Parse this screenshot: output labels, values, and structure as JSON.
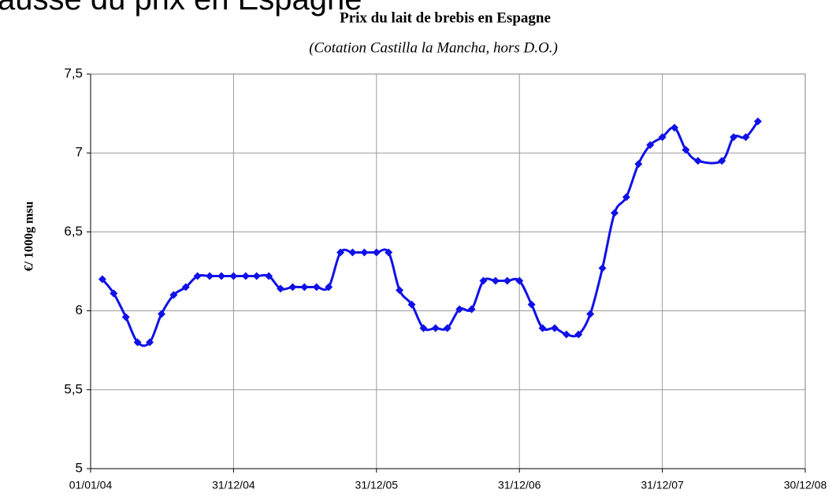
{
  "slide_title": "ausse du prix en Espagne",
  "chart_data": {
    "type": "line",
    "title": "Prix du lait de brebis en Espagne",
    "subtitle": "(Cotation Castilla la Mancha, hors D.O.)",
    "y_label": "€/ 1000g msu",
    "x": [
      "31/01/04",
      "29/02/04",
      "31/03/04",
      "30/04/04",
      "31/05/04",
      "30/06/04",
      "31/07/04",
      "31/08/04",
      "30/09/04",
      "31/10/04",
      "30/11/04",
      "31/12/04",
      "31/01/05",
      "28/02/05",
      "31/03/05",
      "30/04/05",
      "31/05/05",
      "30/06/05",
      "31/07/05",
      "31/08/05",
      "30/09/05",
      "31/10/05",
      "30/11/05",
      "31/12/05",
      "31/01/06",
      "28/02/06",
      "31/03/06",
      "30/04/06",
      "31/05/06",
      "30/06/06",
      "31/07/06",
      "31/08/06",
      "30/09/06",
      "31/10/06",
      "30/11/06",
      "31/12/06",
      "31/01/07",
      "28/02/07",
      "31/03/07",
      "30/04/07",
      "31/05/07",
      "30/06/07",
      "31/07/07",
      "31/08/07",
      "30/09/07",
      "31/10/07",
      "30/11/07",
      "31/12/07",
      "31/01/08",
      "29/02/08",
      "31/03/08",
      "31/05/08",
      "30/06/08",
      "31/07/08",
      "31/08/08"
    ],
    "series": [
      {
        "name": "Prix",
        "color": "#1010e8",
        "values": [
          6.2,
          6.11,
          5.96,
          5.8,
          5.8,
          5.98,
          6.1,
          6.15,
          6.22,
          6.22,
          6.22,
          6.22,
          6.22,
          6.22,
          6.22,
          6.14,
          6.15,
          6.15,
          6.15,
          6.15,
          6.37,
          6.37,
          6.37,
          6.37,
          6.37,
          6.13,
          6.04,
          5.89,
          5.89,
          5.89,
          6.01,
          6.01,
          6.19,
          6.19,
          6.19,
          6.19,
          6.04,
          5.89,
          5.89,
          5.85,
          5.85,
          5.98,
          6.27,
          6.62,
          6.72,
          6.93,
          7.05,
          7.1,
          7.16,
          7.02,
          6.95,
          6.95,
          7.1,
          7.1,
          7.2
        ]
      }
    ],
    "xlim": [
      "01/01/04",
      "30/12/08"
    ],
    "xticks": [
      "01/01/04",
      "31/12/04",
      "31/12/05",
      "31/12/06",
      "31/12/07",
      "30/12/08"
    ],
    "ylim": [
      5,
      7.5
    ],
    "yticks": [
      5,
      {
        "value": 5.5,
        "label": "5,5"
      },
      6,
      {
        "value": 6.5,
        "label": "6,5"
      },
      7,
      {
        "value": 7.5,
        "label": "7,5"
      }
    ],
    "grid": true
  }
}
